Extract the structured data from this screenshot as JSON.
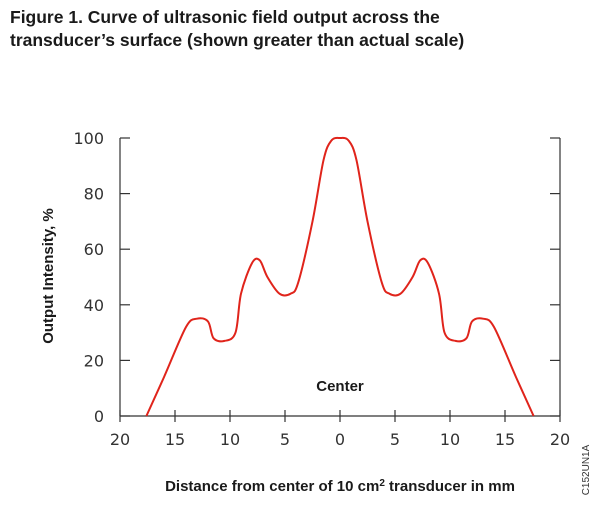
{
  "title_lines": [
    "Figure 1. Curve of ultrasonic field output across the",
    "transducer’s surface (shown greater than actual scale)"
  ],
  "colors": {
    "curve": "#e0241b",
    "axis": "#333333",
    "text": "#1a1a1a"
  },
  "chart_data": {
    "type": "line",
    "title": "Figure 1. Curve of ultrasonic field output across the transducer’s surface (shown greater than actual scale)",
    "xlabel_prefix": "Distance from center of 10 cm",
    "xlabel_sup": "2",
    "xlabel_suffix": " transducer in mm",
    "ylabel": "Output Intensity, %",
    "xlim": [
      -20,
      20
    ],
    "ylim": [
      0,
      100
    ],
    "xticks": [
      -20,
      -15,
      -10,
      -5,
      0,
      5,
      10,
      15,
      20
    ],
    "xtick_labels": [
      "20",
      "15",
      "10",
      "5",
      "0",
      "5",
      "10",
      "15",
      "20"
    ],
    "yticks": [
      0,
      20,
      40,
      60,
      80,
      100
    ],
    "ytick_labels": [
      "0",
      "20",
      "40",
      "60",
      "80",
      "100"
    ],
    "annotation": "Center",
    "code": "C152UN1A",
    "series": [
      {
        "name": "Output intensity",
        "x": [
          -17.6,
          -16,
          -14,
          -13,
          -12,
          -11.5,
          -10.5,
          -9.5,
          -9,
          -8,
          -7.3,
          -6.6,
          -5.5,
          -4.5,
          -3.8,
          -2.5,
          -1.5,
          -0.8,
          0,
          0.8,
          1.5,
          2.5,
          3.8,
          4.5,
          5.5,
          6.6,
          7.3,
          8,
          9,
          9.5,
          10.5,
          11.5,
          12,
          13,
          14,
          16,
          17.6
        ],
        "y": [
          0,
          14,
          32,
          35,
          34,
          28,
          27,
          30,
          44,
          55,
          56,
          50,
          44,
          44,
          48,
          70,
          92,
          99,
          100,
          99,
          92,
          70,
          48,
          44,
          44,
          50,
          56,
          55,
          44,
          30,
          27,
          28,
          34,
          35,
          32,
          14,
          0
        ]
      }
    ]
  }
}
